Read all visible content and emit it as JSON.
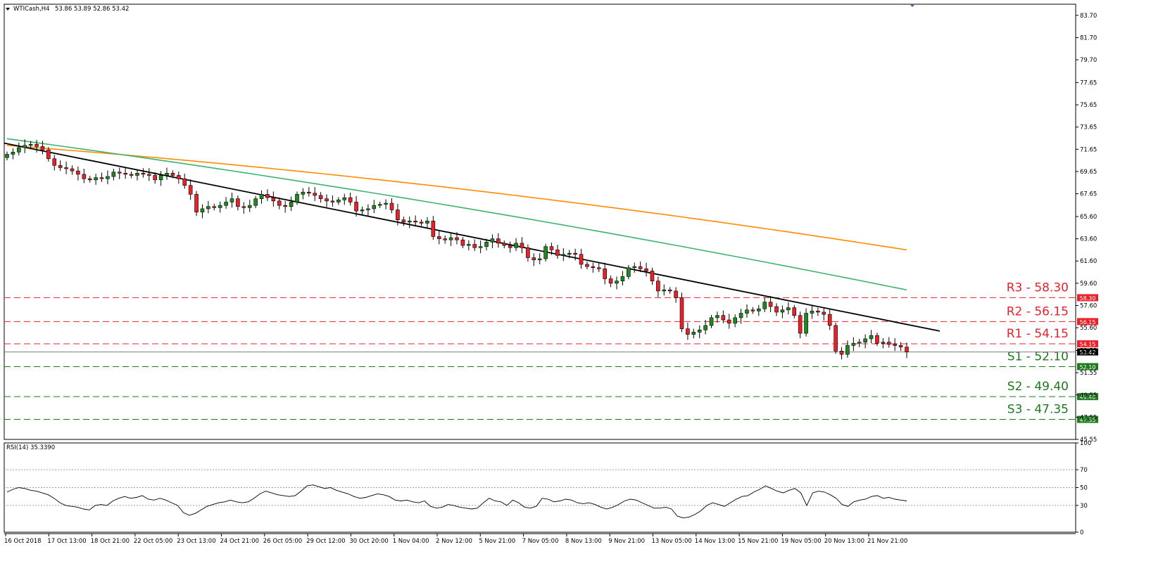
{
  "header": {
    "symbol_label": "WTICash,H4",
    "ohlc": "53.86 53.89 52.86 53.42"
  },
  "rsi_label": "RSI(14) 35.3390",
  "chart_data": [
    {
      "type": "candlestick",
      "title": "WTICash,H4",
      "ylim": [
        45.55,
        84.7
      ],
      "price_ticks": [
        "83.70",
        "81.70",
        "79.70",
        "77.65",
        "75.65",
        "73.65",
        "71.65",
        "69.65",
        "67.65",
        "65.60",
        "63.60",
        "61.60",
        "59.60",
        "57.60",
        "55.60",
        "53.55",
        "51.55",
        "49.55",
        "47.55",
        "45.55"
      ],
      "x_labels": [
        "16 Oct 2018",
        "17 Oct 13:00",
        "18 Oct 21:00",
        "22 Oct 05:00",
        "23 Oct 13:00",
        "24 Oct 21:00",
        "26 Oct 05:00",
        "29 Oct 12:00",
        "30 Oct 20:00",
        "1 Nov 04:00",
        "2 Nov 12:00",
        "5 Nov 21:00",
        "7 Nov 05:00",
        "8 Nov 13:00",
        "9 Nov 21:00",
        "13 Nov 05:00",
        "14 Nov 13:00",
        "15 Nov 21:00",
        "19 Nov 05:00",
        "20 Nov 13:00",
        "21 Nov 21:00"
      ],
      "bars_count": 140,
      "current_price": 53.42,
      "current_price_label": "53.42",
      "closes": [
        71.2,
        71.4,
        71.8,
        72.0,
        72.1,
        71.9,
        71.6,
        70.8,
        70.2,
        70.0,
        69.9,
        69.7,
        69.4,
        69.0,
        68.9,
        69.1,
        69.0,
        69.2,
        69.6,
        69.5,
        69.4,
        69.3,
        69.5,
        69.4,
        69.3,
        68.9,
        69.3,
        69.5,
        69.3,
        69.0,
        68.4,
        67.6,
        66.0,
        66.3,
        66.5,
        66.4,
        66.6,
        66.9,
        67.2,
        66.5,
        66.4,
        66.6,
        67.2,
        67.6,
        67.3,
        67.0,
        66.6,
        66.5,
        66.9,
        67.6,
        67.8,
        67.7,
        67.5,
        67.2,
        67.0,
        66.9,
        67.1,
        67.3,
        66.9,
        66.1,
        66.2,
        66.3,
        66.6,
        66.7,
        66.8,
        66.2,
        65.3,
        65.1,
        65.2,
        65.1,
        65.0,
        65.2,
        63.8,
        63.6,
        63.5,
        63.7,
        63.5,
        63.0,
        63.1,
        62.8,
        62.9,
        63.3,
        63.6,
        63.2,
        63.0,
        62.8,
        63.2,
        62.8,
        61.9,
        61.7,
        61.8,
        62.9,
        62.6,
        62.1,
        62.2,
        62.3,
        62.2,
        61.3,
        61.1,
        61.0,
        60.9,
        60.0,
        59.6,
        59.8,
        60.2,
        61.0,
        61.1,
        60.9,
        60.7,
        59.8,
        58.9,
        59.0,
        58.9,
        58.3,
        55.5,
        55.0,
        55.2,
        55.4,
        55.8,
        56.5,
        56.7,
        56.3,
        56.0,
        56.5,
        56.9,
        57.2,
        57.1,
        57.3,
        57.9,
        57.5,
        57.0,
        57.2,
        57.4,
        56.7,
        55.1,
        56.9,
        57.1,
        57.0,
        56.8,
        55.8
      ],
      "tail_closes": [
        53.5,
        53.2,
        54.0,
        54.2,
        54.3,
        54.6,
        54.9,
        54.2,
        54.3,
        54.1,
        54.0,
        53.86,
        53.42
      ],
      "moving_averages": [
        {
          "color": "#ff8c00",
          "start": 72.0,
          "end": 62.6
        },
        {
          "color": "#3cb371",
          "start": 72.6,
          "end": 59.0
        }
      ],
      "trendline": {
        "color": "#000000",
        "start": 72.2,
        "end": 55.3
      },
      "levels": [
        {
          "name": "R3 - 58.30",
          "value": 58.3,
          "tag": "58.30",
          "color": "#e8212b"
        },
        {
          "name": "R2 - 56.15",
          "value": 56.15,
          "tag": "56.15",
          "color": "#e8212b"
        },
        {
          "name": "R1 - 54.15",
          "value": 54.15,
          "tag": "54.15",
          "color": "#e8212b"
        },
        {
          "name": "S1 - 52.10",
          "value": 52.1,
          "tag": "52.10",
          "color": "#1e7a1e"
        },
        {
          "name": "S2 - 49.40",
          "value": 49.4,
          "tag": "49.40",
          "color": "#1e7a1e"
        },
        {
          "name": "S3 - 47.35",
          "value": 47.35,
          "tag": "47.35",
          "color": "#1e7a1e"
        }
      ]
    },
    {
      "type": "line",
      "title": "RSI(14) 35.3390",
      "ylim": [
        0,
        100
      ],
      "y_ticks": [
        "100",
        "70",
        "50",
        "30",
        "0"
      ],
      "guide_levels": [
        70,
        50,
        30
      ],
      "values": [
        45,
        48,
        50,
        49,
        47,
        46,
        44,
        42,
        38,
        33,
        30,
        29,
        28,
        26,
        25,
        30,
        31,
        30,
        35,
        38,
        40,
        38,
        39,
        41,
        37,
        36,
        38,
        36,
        33,
        30,
        22,
        19,
        21,
        25,
        29,
        31,
        33,
        34,
        36,
        34,
        33,
        34,
        38,
        43,
        46,
        44,
        42,
        41,
        40,
        41,
        46,
        52,
        53,
        51,
        49,
        50,
        47,
        45,
        43,
        40,
        38,
        39,
        41,
        43,
        42,
        40,
        36,
        35,
        36,
        34,
        33,
        35,
        29,
        27,
        28,
        31,
        30,
        28,
        27,
        26,
        27,
        33,
        38,
        35,
        34,
        30,
        36,
        33,
        28,
        27,
        29,
        38,
        37,
        34,
        35,
        37,
        36,
        33,
        32,
        33,
        31,
        28,
        26,
        28,
        31,
        35,
        37,
        36,
        33,
        30,
        27,
        27,
        28,
        26,
        18,
        16,
        17,
        20,
        24,
        30,
        33,
        31,
        29,
        33,
        37,
        40,
        41,
        45,
        48,
        52,
        49,
        46,
        44,
        47,
        49,
        44,
        30,
        44,
        46,
        45,
        42,
        38,
        31,
        29,
        34,
        36,
        37,
        40,
        41,
        38,
        39,
        37,
        36,
        35
      ]
    }
  ]
}
